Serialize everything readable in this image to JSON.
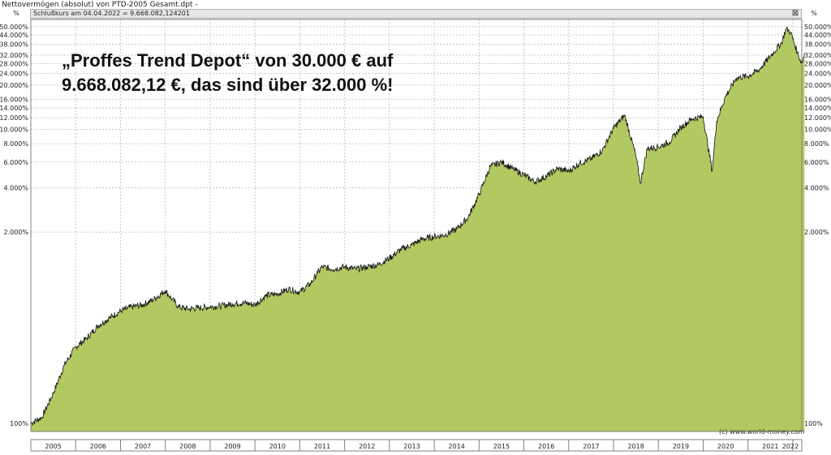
{
  "window": {
    "title": "Nettovermögen (absolut) von PTD-2005 Gesamt.dpt -",
    "info": "Schlußkurs am 04.04.2022 = 9.668.082,124201",
    "close_glyph": "⊠"
  },
  "annotation": {
    "line1": "„Proffes Trend Depot“ von 30.000 € auf",
    "line2": "9.668.082,12 €, das sind über 32.000 %!"
  },
  "copyright": "(c) www.world-money.com",
  "colors": {
    "fill": "#b2c962",
    "line": "#111111",
    "grid": "#c8c8c8"
  },
  "chart_data": {
    "type": "area",
    "yscale": "log",
    "yunit_left": "%",
    "yunit_right": "%",
    "ylim": [
      88,
      56000
    ],
    "xlim": [
      2005.0,
      2022.2
    ],
    "ytick_values": [
      100,
      2000,
      4000,
      6000,
      8000,
      10000,
      12000,
      14000,
      16000,
      20000,
      24000,
      28000,
      32000,
      38000,
      44000,
      50000
    ],
    "ytick_labels": [
      "100%",
      "2.000%",
      "4.000%",
      "6.000%",
      "8.000%",
      "10.000%",
      "12.000%",
      "14.000%",
      "16.000%",
      "20.000%",
      "24.000%",
      "28.000%",
      "32.000%",
      "38.000%",
      "44.000%",
      "50.000%"
    ],
    "years": [
      "2005",
      "2006",
      "2007",
      "2008",
      "2009",
      "2010",
      "2011",
      "2012",
      "2013",
      "2014",
      "2015",
      "2016",
      "2017",
      "2018",
      "2019",
      "2020",
      "2021",
      "2022"
    ],
    "series": [
      {
        "x": [
          2005.0,
          2005.25,
          2005.5,
          2005.75,
          2006.0,
          2006.25,
          2006.5,
          2006.75,
          2007.0,
          2007.25,
          2007.5,
          2007.75,
          2008.0,
          2008.15,
          2008.3,
          2008.5,
          2008.75,
          2009.0,
          2009.25,
          2009.5,
          2009.75,
          2010.0,
          2010.25,
          2010.5,
          2010.75,
          2011.0,
          2011.25,
          2011.4,
          2011.5,
          2011.75,
          2012.0,
          2012.25,
          2012.5,
          2012.75,
          2013.0,
          2013.25,
          2013.5,
          2013.75,
          2014.0,
          2014.25,
          2014.5,
          2014.75,
          2015.0,
          2015.25,
          2015.5,
          2015.75,
          2016.0,
          2016.25,
          2016.5,
          2016.75,
          2017.0,
          2017.25,
          2017.5,
          2017.75,
          2018.0,
          2018.25,
          2018.5,
          2018.6,
          2018.75,
          2019.0,
          2019.25,
          2019.5,
          2019.75,
          2020.0,
          2020.2,
          2020.3,
          2020.5,
          2020.75,
          2021.0,
          2021.25,
          2021.5,
          2021.75,
          2021.85,
          2021.95,
          2022.1,
          2022.2,
          2022.26
        ],
        "values": [
          100,
          110,
          160,
          250,
          330,
          380,
          460,
          520,
          580,
          620,
          640,
          700,
          800,
          700,
          620,
          600,
          610,
          620,
          630,
          650,
          660,
          640,
          740,
          760,
          820,
          780,
          900,
          1060,
          1160,
          1120,
          1160,
          1120,
          1160,
          1200,
          1330,
          1520,
          1640,
          1800,
          1860,
          1920,
          2100,
          2500,
          3600,
          5600,
          6000,
          5400,
          4900,
          4400,
          4800,
          5400,
          5200,
          5900,
          6300,
          7200,
          10200,
          12500,
          6600,
          4300,
          7400,
          7600,
          8200,
          10300,
          11800,
          12200,
          5200,
          11400,
          16800,
          22500,
          23000,
          25500,
          31500,
          39000,
          48500,
          46000,
          33500,
          28000,
          33000
        ]
      }
    ]
  }
}
